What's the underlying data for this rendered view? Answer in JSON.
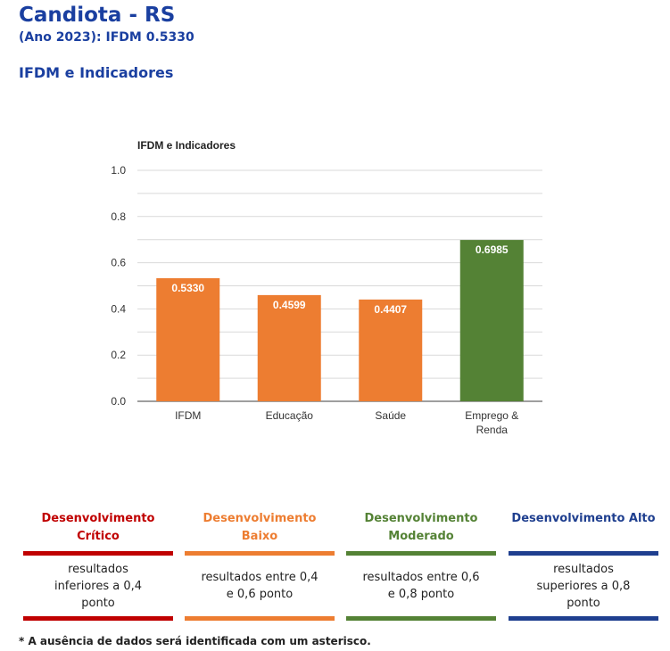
{
  "header": {
    "title": "Candiota - RS",
    "subtitle": "(Ano 2023): IFDM 0.5330",
    "section_title": "IFDM e Indicadores"
  },
  "chart_data": {
    "type": "bar",
    "title": "IFDM e Indicadores",
    "categories": [
      "IFDM",
      "Educação",
      "Saúde",
      "Emprego & Renda"
    ],
    "values": [
      0.533,
      0.4599,
      0.4407,
      0.6985
    ],
    "value_labels": [
      "0.5330",
      "0.4599",
      "0.4407",
      "0.6985"
    ],
    "bar_colors": [
      "#ed7d31",
      "#ed7d31",
      "#ed7d31",
      "#548235"
    ],
    "yticks": [
      "0.0",
      "0.2",
      "0.4",
      "0.6",
      "0.8",
      "1.0"
    ],
    "ylim": [
      0,
      1
    ],
    "grid": true
  },
  "legend": [
    {
      "title": "Desenvolvimento Crítico",
      "color": "#c00000",
      "description": "resultados inferiores a 0,4 ponto"
    },
    {
      "title": "Desenvolvimento Baixo",
      "color": "#ed7d31",
      "description": "resultados entre 0,4 e 0,6 ponto"
    },
    {
      "title": "Desenvolvimento Moderado",
      "color": "#548235",
      "description": "resultados entre 0,6 e 0,8 ponto"
    },
    {
      "title": "Desenvolvimento Alto",
      "color": "#1f3f8f",
      "description": "resultados superiores a 0,8 ponto"
    }
  ],
  "footnote": "* A ausência de dados será identificada com um asterisco."
}
